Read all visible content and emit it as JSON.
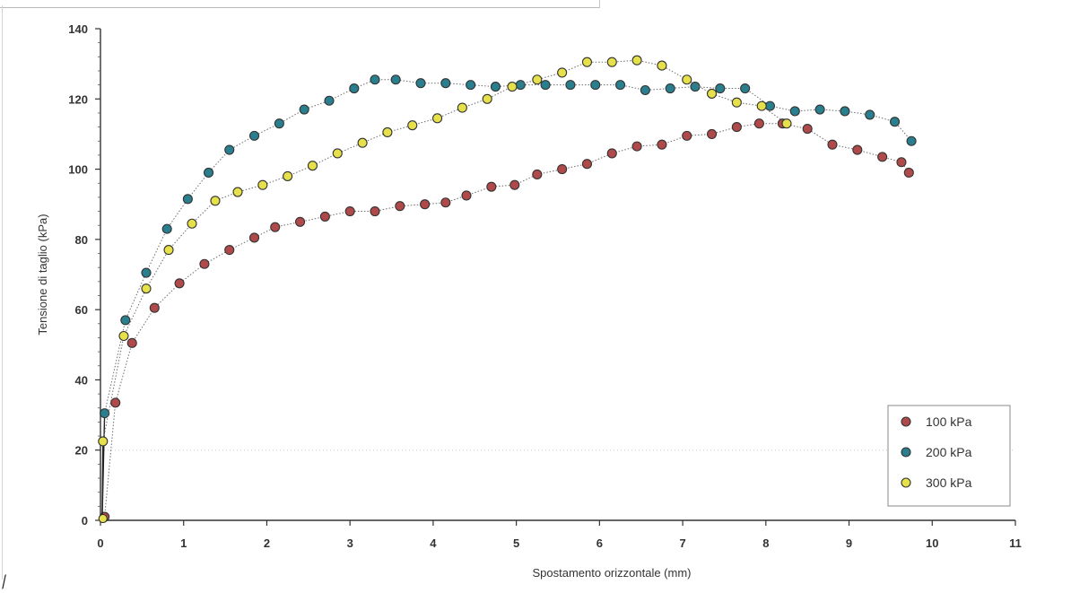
{
  "chart_data": {
    "type": "scatter",
    "xlabel": "Spostamento orizzontale (mm)",
    "ylabel": "Tensione di taglio (kPa)",
    "xlim": [
      0,
      11
    ],
    "ylim": [
      0,
      140
    ],
    "xticks": [
      0,
      1,
      2,
      3,
      4,
      5,
      6,
      7,
      8,
      9,
      10,
      11
    ],
    "yticks": [
      0,
      20,
      40,
      60,
      80,
      100,
      120,
      140
    ],
    "grid": "horizontal at y=20 only (faint dotted)",
    "legend_position": "bottom-right",
    "markers": "filled circles connected by thin dotted lines",
    "series": [
      {
        "name": "100 kPa",
        "color": "#b04a4a",
        "x": [
          0.05,
          0.18,
          0.38,
          0.65,
          0.95,
          1.25,
          1.55,
          1.85,
          2.1,
          2.4,
          2.7,
          3.0,
          3.3,
          3.6,
          3.9,
          4.15,
          4.4,
          4.7,
          4.98,
          5.25,
          5.55,
          5.85,
          6.15,
          6.45,
          6.75,
          7.05,
          7.35,
          7.65,
          7.92,
          8.2,
          8.5,
          8.8,
          9.1,
          9.4,
          9.63,
          9.72
        ],
        "y": [
          1,
          33.5,
          50.5,
          60.5,
          67.5,
          73,
          77,
          80.5,
          83.5,
          85,
          86.5,
          88,
          88,
          89.5,
          90,
          90.5,
          92.5,
          95,
          95.5,
          98.5,
          100,
          101.5,
          104.5,
          106.5,
          107,
          109.5,
          110,
          112,
          113,
          113,
          111.5,
          107,
          105.5,
          103.5,
          102,
          99
        ]
      },
      {
        "name": "200 kPa",
        "color": "#2a7f8f",
        "x": [
          0.05,
          0.3,
          0.55,
          0.8,
          1.05,
          1.3,
          1.55,
          1.85,
          2.15,
          2.45,
          2.75,
          3.05,
          3.3,
          3.55,
          3.85,
          4.15,
          4.45,
          4.75,
          5.05,
          5.35,
          5.65,
          5.95,
          6.25,
          6.55,
          6.85,
          7.15,
          7.45,
          7.75,
          8.05,
          8.35,
          8.65,
          8.95,
          9.25,
          9.55,
          9.75
        ],
        "y": [
          30.5,
          57,
          70.5,
          83,
          91.5,
          99,
          105.5,
          109.5,
          113,
          117,
          119.5,
          123,
          125.5,
          125.5,
          124.5,
          124.5,
          124,
          123.5,
          124,
          124,
          124,
          124,
          124,
          122.5,
          123,
          123.5,
          123,
          123,
          118,
          116.5,
          117,
          116.5,
          115.5,
          113.5,
          108
        ]
      },
      {
        "name": "300 kPa",
        "color": "#e6e04a",
        "x": [
          0.03,
          0.28,
          0.55,
          0.82,
          1.1,
          1.38,
          1.65,
          1.95,
          2.25,
          2.55,
          2.85,
          3.15,
          3.45,
          3.75,
          4.05,
          4.35,
          4.65,
          4.95,
          5.25,
          5.55,
          5.85,
          6.15,
          6.45,
          6.75,
          7.05,
          7.35,
          7.65,
          7.95,
          8.25
        ],
        "y": [
          22.5,
          52.5,
          66,
          77,
          84.5,
          91,
          93.5,
          95.5,
          98,
          101,
          104.5,
          107.5,
          110.5,
          112.5,
          114.5,
          117.5,
          120,
          123.5,
          125.5,
          127.5,
          130.5,
          130.5,
          131,
          129.5,
          125.5,
          121.5,
          119,
          118,
          113
        ]
      }
    ]
  },
  "ui": {
    "legend_items": [
      "100  kPa",
      "200  kPa",
      "300  kPa"
    ]
  }
}
